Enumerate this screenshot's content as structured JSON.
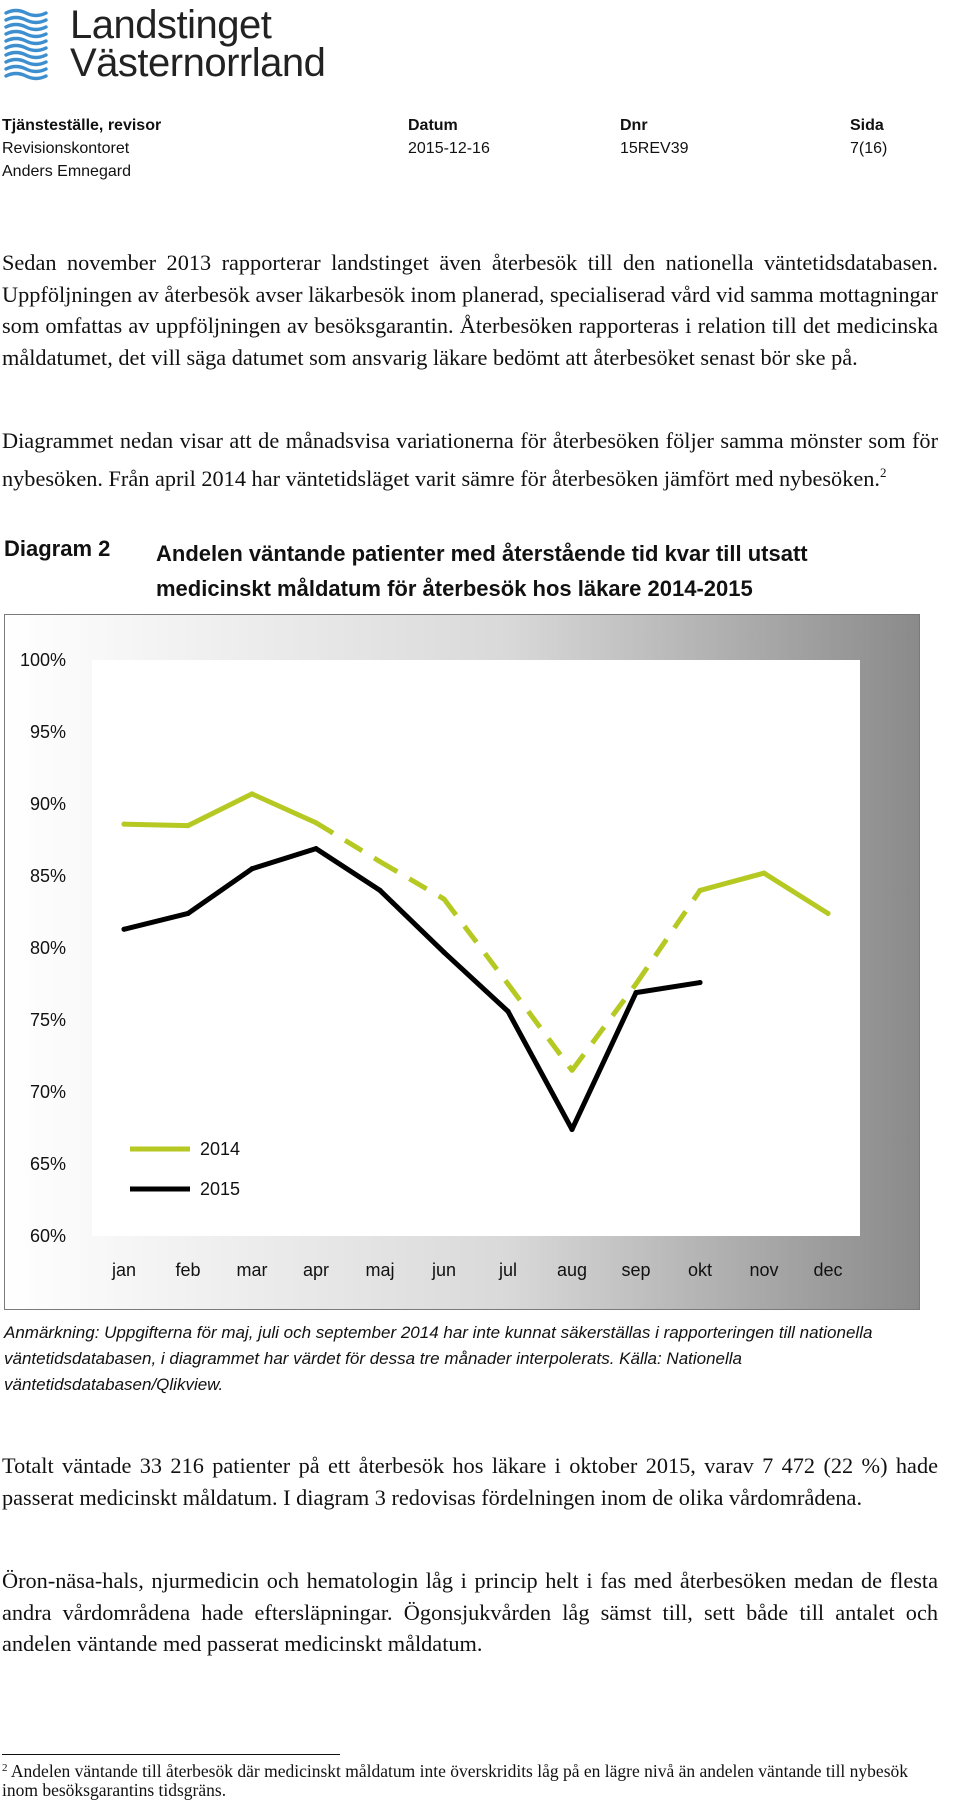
{
  "logo": {
    "line1": "Landstinget",
    "line2": "Västernorrland",
    "icon": "wave-lines-icon"
  },
  "header": {
    "col1": {
      "label": "Tjänsteställe, revisor",
      "line1": "Revisionskontoret",
      "line2": "Anders Emnegard"
    },
    "col2": {
      "label": "Datum",
      "value": "2015-12-16"
    },
    "col3": {
      "label": "Dnr",
      "value": "15REV39"
    },
    "col4": {
      "label": "Sida",
      "value": "7(16)"
    }
  },
  "paragraphs": {
    "p1": "Sedan november 2013 rapporterar landstinget även återbesök till den nationella väntetidsdatabasen. Uppföljningen av återbesök avser läkarbesök inom planerad, specialiserad vård vid samma mottagningar som omfattas av uppföljningen av besöksgarantin. Återbesöken rapporteras i relation till det medicinska måldatumet, det vill säga datumet som ansvarig läkare bedömt att återbesöket senast bör ske på.",
    "p2": "Diagrammet nedan visar att de månadsvisa variationerna för återbesöken följer samma mönster som för nybesöken. Från april 2014 har väntetidsläget varit sämre för återbesöken jämfört med nybesöken.",
    "p2_ref": "2",
    "p3": "Totalt väntade 33 216 patienter på ett återbesök hos läkare i oktober 2015, varav 7 472 (22 %) hade passerat medicinskt måldatum. I diagram 3 redovisas fördelningen inom de olika vårdområdena.",
    "p4": "Öron-näsa-hals, njurmedicin och hematologin låg i princip helt i fas med återbesöken medan de flesta andra vårdområdena hade eftersläpningar. Ögonsjukvården låg sämst till, sett både till antalet och andelen väntande med passerat medicinskt måldatum."
  },
  "diagram": {
    "label": "Diagram 2",
    "title": "Andelen väntande patienter med återstående tid kvar till utsatt medicinskt måldatum för återbesök hos läkare 2014-2015"
  },
  "chart_data": {
    "type": "line",
    "title": "Andelen väntande patienter med återstående tid kvar till utsatt medicinskt måldatum för återbesök hos läkare 2014-2015",
    "categories": [
      "jan",
      "feb",
      "mar",
      "apr",
      "maj",
      "jun",
      "jul",
      "aug",
      "sep",
      "okt",
      "nov",
      "dec"
    ],
    "ylim": [
      60,
      100
    ],
    "yticks": [
      60,
      65,
      70,
      75,
      80,
      85,
      90,
      95,
      100
    ],
    "ytick_labels": [
      "60%",
      "65%",
      "70%",
      "75%",
      "80%",
      "85%",
      "90%",
      "95%",
      "100%"
    ],
    "xlabel": "",
    "ylabel": "",
    "grid": false,
    "legend": "bottom-left",
    "series": [
      {
        "name": "2014",
        "color": "#b5c922",
        "values": [
          88.6,
          88.5,
          90.7,
          88.7,
          86.0,
          83.4,
          77.5,
          71.5,
          77.5,
          84.0,
          85.2,
          82.4
        ],
        "interpolated": [
          "maj",
          "jul",
          "sep"
        ]
      },
      {
        "name": "2015",
        "color": "#000000",
        "values": [
          81.3,
          82.4,
          85.5,
          86.9,
          84.0,
          79.7,
          75.6,
          67.4,
          76.9,
          77.6,
          null,
          null
        ]
      }
    ]
  },
  "note": "Anmärkning: Uppgifterna för maj, juli och september 2014 har inte kunnat säkerställas i rapporteringen till nationella väntetidsdatabasen, i diagrammet har värdet för dessa tre månader interpolerats. Källa: Nationella väntetidsdatabasen/Qlikview.",
  "footnote": {
    "ref": "2",
    "text": "Andelen väntande till återbesök där medicinskt måldatum inte överskridits låg på en lägre nivå än andelen väntande till nybesök inom besöksgarantins tidsgräns."
  }
}
